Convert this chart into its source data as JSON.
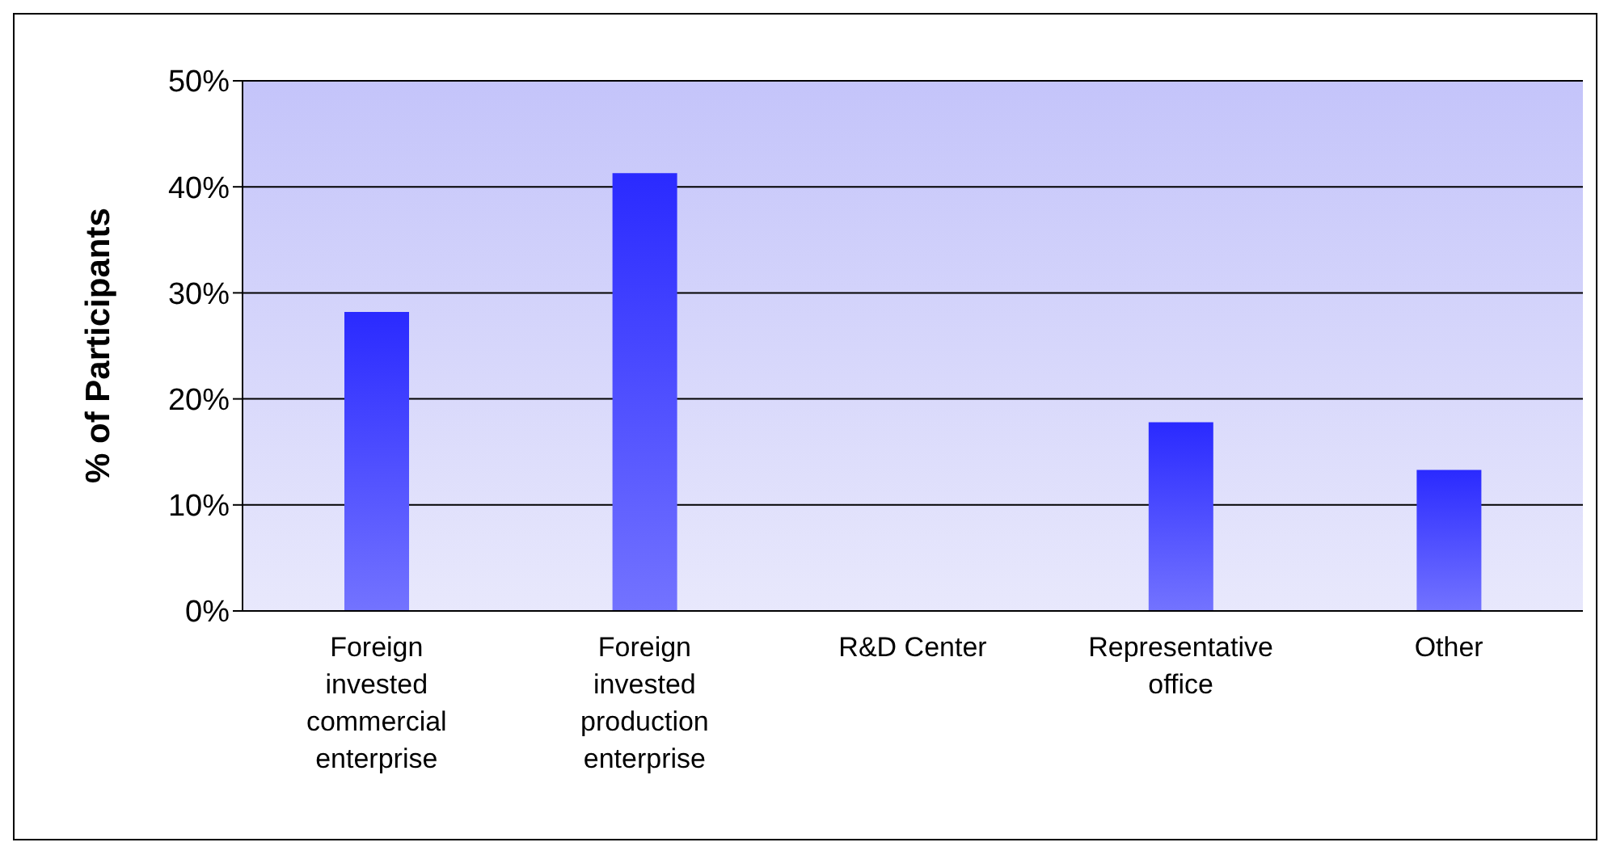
{
  "chart_data": {
    "type": "bar",
    "ylabel": "% of Participants",
    "categories": [
      "Foreign invested commercial enterprise",
      "Foreign invested production enterprise",
      "R&D Center",
      "Representative office",
      "Other"
    ],
    "values": [
      28.2,
      41.3,
      0,
      17.8,
      13.3
    ],
    "color": "#2a2aff",
    "ylim": [
      0,
      50
    ],
    "yticks": [
      {
        "value": 0,
        "label": "0%"
      },
      {
        "value": 10,
        "label": "10%"
      },
      {
        "value": 20,
        "label": "20%"
      },
      {
        "value": 30,
        "label": "30%"
      },
      {
        "value": 40,
        "label": "40%"
      },
      {
        "value": 50,
        "label": "50%"
      }
    ],
    "grid": "y"
  }
}
